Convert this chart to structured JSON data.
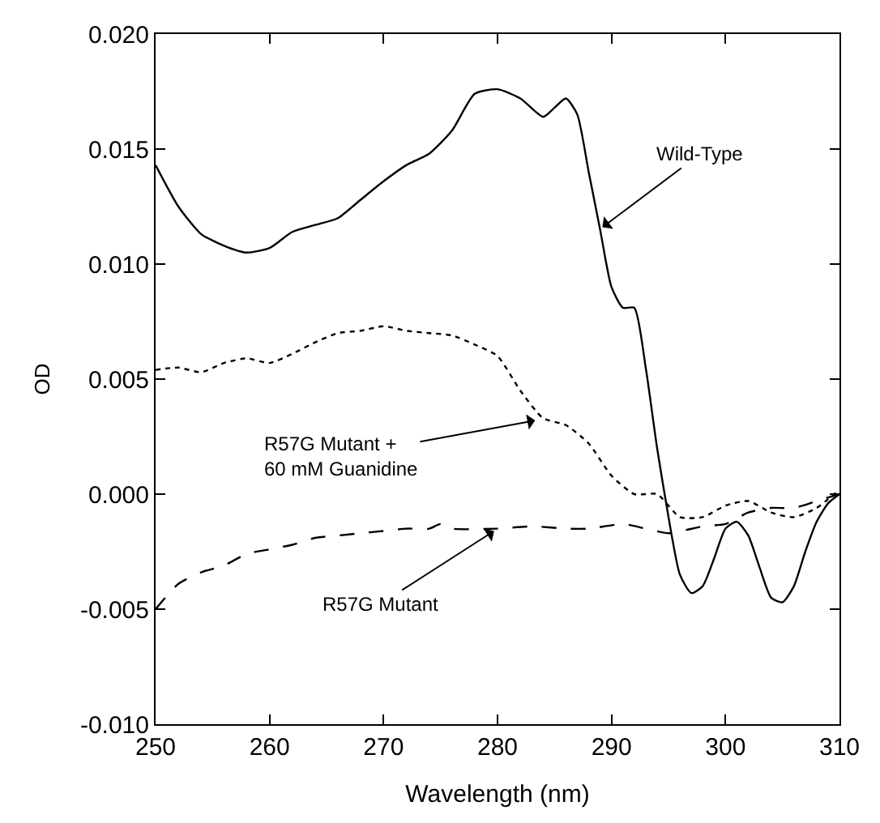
{
  "chart_data": {
    "type": "line",
    "xlabel": "Wavelength (nm)",
    "ylabel": "OD",
    "xlim": [
      250,
      310
    ],
    "xticks": [
      250,
      260,
      270,
      280,
      290,
      300,
      310
    ],
    "ylim": [
      -0.01,
      0.02
    ],
    "yticks": [
      {
        "value": -0.01,
        "label": "-0.010"
      },
      {
        "value": -0.005,
        "label": "-0.005"
      },
      {
        "value": 0,
        "label": "0.000"
      },
      {
        "value": 0.005,
        "label": "0.005"
      },
      {
        "value": 0.01,
        "label": "0.010"
      },
      {
        "value": 0.015,
        "label": "0.015"
      },
      {
        "value": 0.02,
        "label": "0.020"
      }
    ],
    "marker": "none",
    "series": [
      {
        "color": "#000000",
        "line_style": "solid",
        "x": [
          250,
          252,
          254,
          256,
          258,
          260,
          262,
          264,
          266,
          268,
          270,
          272,
          274,
          276,
          278,
          280,
          282,
          284,
          285,
          286,
          287,
          288,
          289,
          290,
          291,
          292,
          293,
          294,
          295,
          296,
          297,
          298,
          299,
          300,
          301,
          302,
          303,
          304,
          305,
          306,
          307,
          308,
          309,
          310
        ],
        "values": [
          0.0143,
          0.0125,
          0.0113,
          0.0108,
          0.0105,
          0.0107,
          0.0114,
          0.0117,
          0.012,
          0.0128,
          0.0136,
          0.0143,
          0.0148,
          0.0158,
          0.0174,
          0.0176,
          0.0172,
          0.0164,
          0.0168,
          0.0172,
          0.0165,
          0.014,
          0.0115,
          0.009,
          0.0081,
          0.0081,
          0.0055,
          0.002,
          -0.001,
          -0.0035,
          -0.0043,
          -0.004,
          -0.0028,
          -0.0015,
          -0.0012,
          -0.0018,
          -0.0032,
          -0.0045,
          -0.0047,
          -0.004,
          -0.0025,
          -0.0012,
          -0.0004,
          0.0
        ]
      },
      {
        "color": "#000000",
        "line_style": "dotted",
        "x": [
          250,
          252,
          254,
          256,
          258,
          260,
          262,
          264,
          266,
          268,
          270,
          272,
          274,
          276,
          278,
          280,
          282,
          284,
          286,
          288,
          290,
          292,
          294,
          296,
          298,
          300,
          302,
          304,
          306,
          308,
          310
        ],
        "values": [
          0.0054,
          0.0055,
          0.0053,
          0.0057,
          0.0059,
          0.0057,
          0.0061,
          0.0066,
          0.007,
          0.0071,
          0.0073,
          0.0071,
          0.007,
          0.0069,
          0.0065,
          0.006,
          0.0045,
          0.0033,
          0.003,
          0.0022,
          0.0008,
          0.0,
          0.0,
          -0.001,
          -0.001,
          -0.0005,
          -0.0003,
          -0.0008,
          -0.001,
          -0.0006,
          0.0002
        ]
      },
      {
        "color": "#000000",
        "line_style": "dashed",
        "x": [
          250,
          252,
          254,
          256,
          258,
          260,
          262,
          264,
          266,
          268,
          270,
          272,
          274,
          275,
          276,
          280,
          283,
          286,
          288,
          291,
          293,
          295,
          298,
          300,
          302,
          304,
          306,
          308,
          310
        ],
        "values": [
          -0.005,
          -0.0039,
          -0.0034,
          -0.0031,
          -0.0026,
          -0.0024,
          -0.0022,
          -0.0019,
          -0.0018,
          -0.0017,
          -0.0016,
          -0.0015,
          -0.0015,
          -0.0013,
          -0.0015,
          -0.0015,
          -0.0014,
          -0.0015,
          -0.0015,
          -0.0013,
          -0.0015,
          -0.0017,
          -0.0014,
          -0.0013,
          -0.0008,
          -0.0006,
          -0.0006,
          -0.0003,
          0.0
        ]
      }
    ],
    "annotations": [
      {
        "text": "Wild-Type",
        "x": 289.2,
        "y": 0.0116
      },
      {
        "text": "R57G Mutant +\n60 mM Guanidine",
        "x": 283.3,
        "y": 0.0032
      },
      {
        "text": "R57G Mutant",
        "x": 279.7,
        "y": -0.0016
      }
    ]
  }
}
